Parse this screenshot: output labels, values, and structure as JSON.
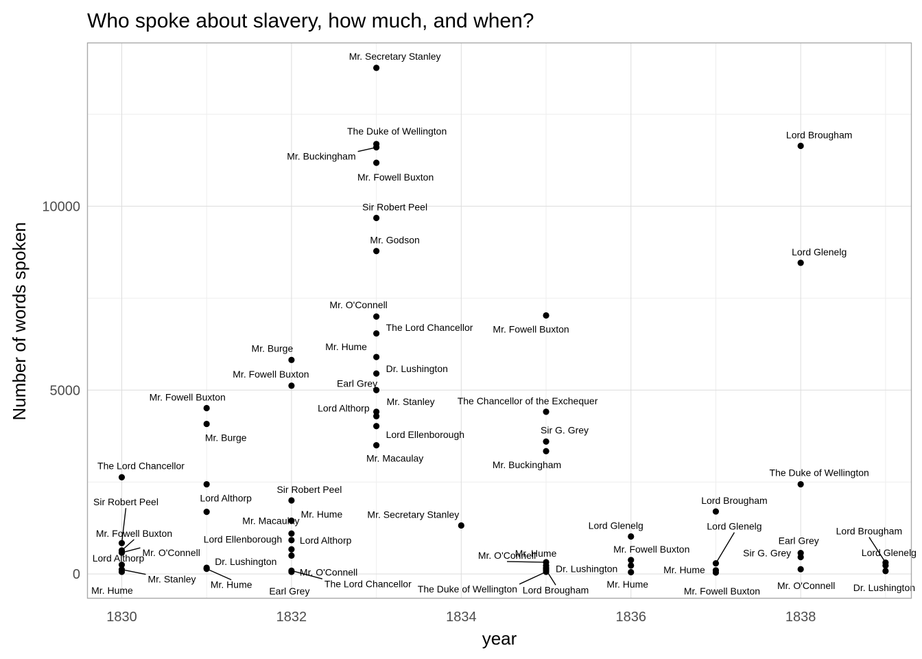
{
  "chart_data": {
    "type": "scatter",
    "title": "Who spoke about slavery, how much, and when?",
    "xlabel": "year",
    "ylabel": "Number of words spoken",
    "xlim": [
      1829.6,
      1839.3
    ],
    "ylim": [
      -650,
      14430
    ],
    "x_ticks": [
      1830,
      1832,
      1834,
      1836,
      1838
    ],
    "y_ticks": [
      0,
      5000,
      10000
    ],
    "grid": true,
    "legend": "none",
    "point_color": "#000000",
    "points": [
      {
        "x": 1830,
        "y": 2630,
        "label": "The Lord Chancellor"
      },
      {
        "x": 1830,
        "y": 840,
        "label": "Sir Robert Peel"
      },
      {
        "x": 1830,
        "y": 640,
        "label": "Mr. Fowell Buxton"
      },
      {
        "x": 1830,
        "y": 580,
        "label": "Mr. O'Connell"
      },
      {
        "x": 1830,
        "y": 250,
        "label": "Lord Althorp"
      },
      {
        "x": 1830,
        "y": 120,
        "label": "Mr. Stanley"
      },
      {
        "x": 1830,
        "y": 60,
        "label": "Mr. Hume"
      },
      {
        "x": 1831,
        "y": 4510,
        "label": "Mr. Fowell Buxton"
      },
      {
        "x": 1831,
        "y": 4080,
        "label": "Mr. Burge"
      },
      {
        "x": 1831,
        "y": 2440,
        "label": ""
      },
      {
        "x": 1831,
        "y": 1690,
        "label": "Lord Althorp"
      },
      {
        "x": 1831,
        "y": 170,
        "label": "Dr. Lushington"
      },
      {
        "x": 1831,
        "y": 140,
        "label": "Mr. Hume"
      },
      {
        "x": 1832,
        "y": 5820,
        "label": "Mr. Burge"
      },
      {
        "x": 1832,
        "y": 5120,
        "label": "Mr. Fowell Buxton"
      },
      {
        "x": 1832,
        "y": 2000,
        "label": "Sir Robert Peel"
      },
      {
        "x": 1832,
        "y": 1450,
        "label": "Mr. Macaulay"
      },
      {
        "x": 1832,
        "y": 1100,
        "label": "Mr. Hume"
      },
      {
        "x": 1832,
        "y": 920,
        "label": "Lord Althorp"
      },
      {
        "x": 1832,
        "y": 670,
        "label": "Lord Ellenborough"
      },
      {
        "x": 1832,
        "y": 500,
        "label": "Mr. O'Connell"
      },
      {
        "x": 1832,
        "y": 90,
        "label": "The Lord Chancellor"
      },
      {
        "x": 1832,
        "y": 60,
        "label": "Earl Grey"
      },
      {
        "x": 1833,
        "y": 13760,
        "label": "Mr. Secretary Stanley"
      },
      {
        "x": 1833,
        "y": 11690,
        "label": "The Duke of Wellington"
      },
      {
        "x": 1833,
        "y": 11600,
        "label": "Mr. Buckingham"
      },
      {
        "x": 1833,
        "y": 11180,
        "label": "Mr. Fowell Buxton"
      },
      {
        "x": 1833,
        "y": 9680,
        "label": "Sir Robert Peel"
      },
      {
        "x": 1833,
        "y": 8780,
        "label": "Mr. Godson"
      },
      {
        "x": 1833,
        "y": 7000,
        "label": "Mr. O'Connell"
      },
      {
        "x": 1833,
        "y": 6540,
        "label": "The Lord Chancellor"
      },
      {
        "x": 1833,
        "y": 5900,
        "label": "Mr. Hume"
      },
      {
        "x": 1833,
        "y": 5450,
        "label": "Dr. Lushington"
      },
      {
        "x": 1833,
        "y": 5000,
        "label": "Earl Grey"
      },
      {
        "x": 1833,
        "y": 4410,
        "label": "Mr. Stanley"
      },
      {
        "x": 1833,
        "y": 4290,
        "label": "Lord Althorp"
      },
      {
        "x": 1833,
        "y": 4020,
        "label": "Lord Ellenborough"
      },
      {
        "x": 1833,
        "y": 3500,
        "label": "Mr. Macaulay"
      },
      {
        "x": 1834,
        "y": 1320,
        "label": "Mr. Secretary Stanley"
      },
      {
        "x": 1835,
        "y": 7030,
        "label": "Mr. Fowell Buxton"
      },
      {
        "x": 1835,
        "y": 4410,
        "label": "The Chancellor of the Exchequer"
      },
      {
        "x": 1835,
        "y": 3600,
        "label": "Sir G. Grey"
      },
      {
        "x": 1835,
        "y": 3340,
        "label": "Mr. Buckingham"
      },
      {
        "x": 1835,
        "y": 320,
        "label": "Mr. O'Connell"
      },
      {
        "x": 1835,
        "y": 230,
        "label": "Mr. Hume"
      },
      {
        "x": 1835,
        "y": 160,
        "label": "Dr. Lushington"
      },
      {
        "x": 1835,
        "y": 110,
        "label": "Lord Brougham"
      },
      {
        "x": 1835,
        "y": 60,
        "label": "The Duke of Wellington"
      },
      {
        "x": 1836,
        "y": 1020,
        "label": "Lord Glenelg"
      },
      {
        "x": 1836,
        "y": 380,
        "label": "Mr. Fowell Buxton"
      },
      {
        "x": 1836,
        "y": 230,
        "label": "Mr. Hume"
      },
      {
        "x": 1836,
        "y": 50,
        "label": ""
      },
      {
        "x": 1837,
        "y": 1700,
        "label": "Lord Brougham"
      },
      {
        "x": 1837,
        "y": 290,
        "label": "Lord Glenelg"
      },
      {
        "x": 1837,
        "y": 100,
        "label": "Mr. Hume"
      },
      {
        "x": 1837,
        "y": 40,
        "label": "Mr. Fowell Buxton"
      },
      {
        "x": 1838,
        "y": 11640,
        "label": "Lord Brougham"
      },
      {
        "x": 1838,
        "y": 8460,
        "label": "Lord Glenelg"
      },
      {
        "x": 1838,
        "y": 2440,
        "label": "The Duke of Wellington"
      },
      {
        "x": 1838,
        "y": 570,
        "label": "Earl Grey"
      },
      {
        "x": 1838,
        "y": 460,
        "label": "Sir G. Grey"
      },
      {
        "x": 1838,
        "y": 130,
        "label": "Mr. O'Connell"
      },
      {
        "x": 1839,
        "y": 310,
        "label": "Lord Brougham"
      },
      {
        "x": 1839,
        "y": 230,
        "label": "Lord Glenelg"
      },
      {
        "x": 1839,
        "y": 80,
        "label": "Dr. Lushington"
      }
    ]
  }
}
